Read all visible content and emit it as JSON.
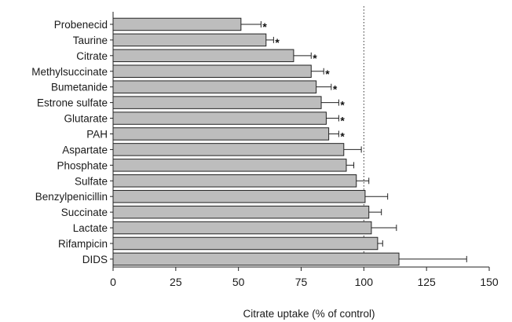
{
  "chart_data": {
    "type": "bar",
    "orientation": "horizontal",
    "title": "",
    "xlabel": "Citrate uptake (% of control)",
    "ylabel": "",
    "xlim": [
      0,
      150
    ],
    "xticks": [
      0,
      25,
      50,
      75,
      100,
      125,
      150
    ],
    "tick_labels": [
      "0",
      "25",
      "50",
      "75",
      "100",
      "125",
      "150"
    ],
    "reference_line": 100,
    "grid": false,
    "legend": "none",
    "bar_color": "#bdbdbd",
    "categories": [
      "Probenecid",
      "Taurine",
      "Citrate",
      "Methylsuccinate",
      "Bumetanide",
      "Estrone sulfate",
      "Glutarate",
      "PAH",
      "Aspartate",
      "Phosphate",
      "Sulfate",
      "Benzylpenicillin",
      "Succinate",
      "Lactate",
      "Rifampicin",
      "DIDS"
    ],
    "values": [
      51,
      61,
      72,
      79,
      81,
      83,
      85,
      86,
      92,
      93,
      97,
      100.5,
      102,
      103,
      105.5,
      114
    ],
    "errors": [
      8,
      3,
      7,
      5,
      6,
      7,
      5,
      4,
      7,
      3,
      5,
      9,
      5,
      10,
      2,
      27
    ],
    "significant": [
      "*",
      "*",
      "*",
      "*",
      "*",
      "*",
      "*",
      "*",
      "",
      "",
      "",
      "",
      "",
      "",
      "",
      ""
    ]
  }
}
